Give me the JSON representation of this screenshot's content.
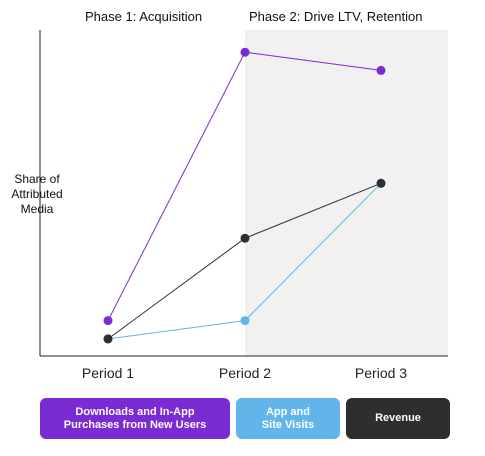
{
  "chart_data": {
    "type": "line",
    "title": "",
    "xlabel": "",
    "ylabel": "Share of\nAttributed\nMedia",
    "categories": [
      "Period 1",
      "Period 2",
      "Period 3"
    ],
    "ylim": [
      0,
      100
    ],
    "grid": false,
    "phases": [
      {
        "label": "Phase 1: Acquisition",
        "start": "Period 1",
        "end": "Period 2",
        "shaded": false
      },
      {
        "label": "Phase 2: Drive LTV, Retention",
        "start": "Period 2",
        "end": "Period 3",
        "shaded": true,
        "color": "#f1f1f1"
      }
    ],
    "series": [
      {
        "name": "Downloads and In-App\nPurchases from New Users",
        "color": "#7b2bd4",
        "values": [
          9,
          97,
          91
        ]
      },
      {
        "name": "App and\nSite Visits",
        "color": "#62b5ea",
        "values": [
          3,
          9,
          54
        ]
      },
      {
        "name": "Revenue",
        "color": "#2e2e2e",
        "values": [
          3,
          36,
          54
        ]
      }
    ],
    "legend_position": "bottom"
  }
}
